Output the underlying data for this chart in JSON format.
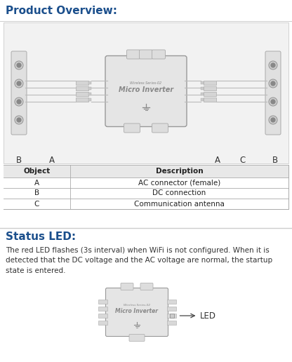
{
  "bg_color": "#ffffff",
  "title1": "Product Overview:",
  "title1_color": "#1b4f8c",
  "title2": "Status LED:",
  "title2_color": "#1b4f8c",
  "table_rows": [
    [
      "Object",
      "Description"
    ],
    [
      "A",
      "AC connector (female)"
    ],
    [
      "B",
      "DC connection"
    ],
    [
      "C",
      "Communication antenna"
    ]
  ],
  "led_text": "The red LED flashes (3s interval) when WiFi is not configured. When it is\ndetected that the DC voltage and the AC voltage are normal, the startup\nstate is entered.",
  "led_label": "LED",
  "inverter_label": "Micro Inverter",
  "inverter_label2": "Wireless Series-02"
}
